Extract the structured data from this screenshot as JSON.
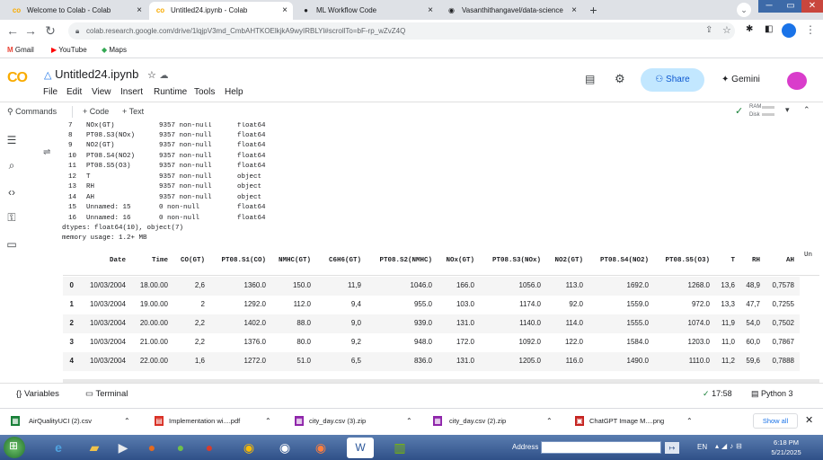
{
  "browser": {
    "tabs": [
      {
        "label": "Welcome to Colab - Colab",
        "icon": "colab-icon"
      },
      {
        "label": "Untitled24.ipynb - Colab",
        "icon": "colab-icon"
      },
      {
        "label": "ML Workflow Code",
        "icon": "chatgpt-icon"
      },
      {
        "label": "Vasanthithangavel/data-science",
        "icon": "github-icon"
      }
    ],
    "new_tab_symbol": "+",
    "url": "colab.research.google.com/drive/1lqjpV3md_CmbAHTKOElkjkA9wyIRBLYl#scrollTo=bF-rp_wZvZ4Q",
    "bookmarks": [
      "Gmail",
      "YouTube",
      "Maps"
    ]
  },
  "colab": {
    "logo": "CO",
    "file_name": "Untitled24.ipynb",
    "menu": [
      "File",
      "Edit",
      "View",
      "Insert",
      "Runtime",
      "Tools",
      "Help"
    ],
    "share_label": "Share",
    "gemini_label": "Gemini",
    "commands_label": "Commands",
    "add_code_label": "+ Code",
    "add_text_label": "+ Text",
    "ram_label": "RAM",
    "disk_label": "Disk"
  },
  "info_rows": [
    {
      "idx": "7",
      "col": "NOx(GT)",
      "count": "9357 non-null",
      "dtype": "float64"
    },
    {
      "idx": "8",
      "col": "PT08.S3(NOx)",
      "count": "9357 non-null",
      "dtype": "float64"
    },
    {
      "idx": "9",
      "col": "NO2(GT)",
      "count": "9357 non-null",
      "dtype": "float64"
    },
    {
      "idx": "10",
      "col": "PT08.S4(NO2)",
      "count": "9357 non-null",
      "dtype": "float64"
    },
    {
      "idx": "11",
      "col": "PT08.S5(O3)",
      "count": "9357 non-null",
      "dtype": "float64"
    },
    {
      "idx": "12",
      "col": "T",
      "count": "9357 non-null",
      "dtype": "object"
    },
    {
      "idx": "13",
      "col": "RH",
      "count": "9357 non-null",
      "dtype": "object"
    },
    {
      "idx": "14",
      "col": "AH",
      "count": "9357 non-null",
      "dtype": "object"
    },
    {
      "idx": "15",
      "col": "Unnamed: 15",
      "count": "0 non-null",
      "dtype": "float64"
    },
    {
      "idx": "16",
      "col": "Unnamed: 16",
      "count": "0 non-null",
      "dtype": "float64"
    }
  ],
  "info_footer": {
    "dtypes": "dtypes: float64(10), object(7)",
    "memory": "memory usage: 1.2+ MB"
  },
  "table": {
    "columns": [
      "Date",
      "Time",
      "CO(GT)",
      "PT08.S1(CO)",
      "NMHC(GT)",
      "C6H6(GT)",
      "PT08.S2(NMHC)",
      "NOx(GT)",
      "PT08.S3(NOx)",
      "NO2(GT)",
      "PT08.S4(NO2)",
      "PT08.S5(O3)",
      "T",
      "RH",
      "AH",
      "Un"
    ],
    "rows": [
      {
        "index": "0",
        "cells": [
          "10/03/2004",
          "18.00.00",
          "2,6",
          "1360.0",
          "150.0",
          "11,9",
          "1046.0",
          "166.0",
          "1056.0",
          "113.0",
          "1692.0",
          "1268.0",
          "13,6",
          "48,9",
          "0,7578"
        ]
      },
      {
        "index": "1",
        "cells": [
          "10/03/2004",
          "19.00.00",
          "2",
          "1292.0",
          "112.0",
          "9,4",
          "955.0",
          "103.0",
          "1174.0",
          "92.0",
          "1559.0",
          "972.0",
          "13,3",
          "47,7",
          "0,7255"
        ]
      },
      {
        "index": "2",
        "cells": [
          "10/03/2004",
          "20.00.00",
          "2,2",
          "1402.0",
          "88.0",
          "9,0",
          "939.0",
          "131.0",
          "1140.0",
          "114.0",
          "1555.0",
          "1074.0",
          "11,9",
          "54,0",
          "0,7502"
        ]
      },
      {
        "index": "3",
        "cells": [
          "10/03/2004",
          "21.00.00",
          "2,2",
          "1376.0",
          "80.0",
          "9,2",
          "948.0",
          "172.0",
          "1092.0",
          "122.0",
          "1584.0",
          "1203.0",
          "11,0",
          "60,0",
          "0,7867"
        ]
      },
      {
        "index": "4",
        "cells": [
          "10/03/2004",
          "22.00.00",
          "1,6",
          "1272.0",
          "51.0",
          "6,5",
          "836.0",
          "131.0",
          "1205.0",
          "116.0",
          "1490.0",
          "1110.0",
          "11,2",
          "59,6",
          "0,7888"
        ]
      }
    ]
  },
  "status": {
    "variables": "Variables",
    "terminal": "Terminal",
    "time": "17:58",
    "runtime": "Python 3"
  },
  "downloads": [
    {
      "name": "AirQualityUCI (2).csv",
      "icon": "csv-icon"
    },
    {
      "name": "Implementation wi....pdf",
      "icon": "pdf-icon"
    },
    {
      "name": "city_day.csv (3).zip",
      "icon": "zip-icon"
    },
    {
      "name": "city_day.csv (2).zip",
      "icon": "zip-icon"
    },
    {
      "name": "ChatGPT Image M....png",
      "icon": "image-icon"
    }
  ],
  "downloads_show_all": "Show all",
  "taskbar": {
    "address_label": "Address",
    "language": "EN",
    "time": "6:18 PM",
    "date": "5/21/2025"
  }
}
